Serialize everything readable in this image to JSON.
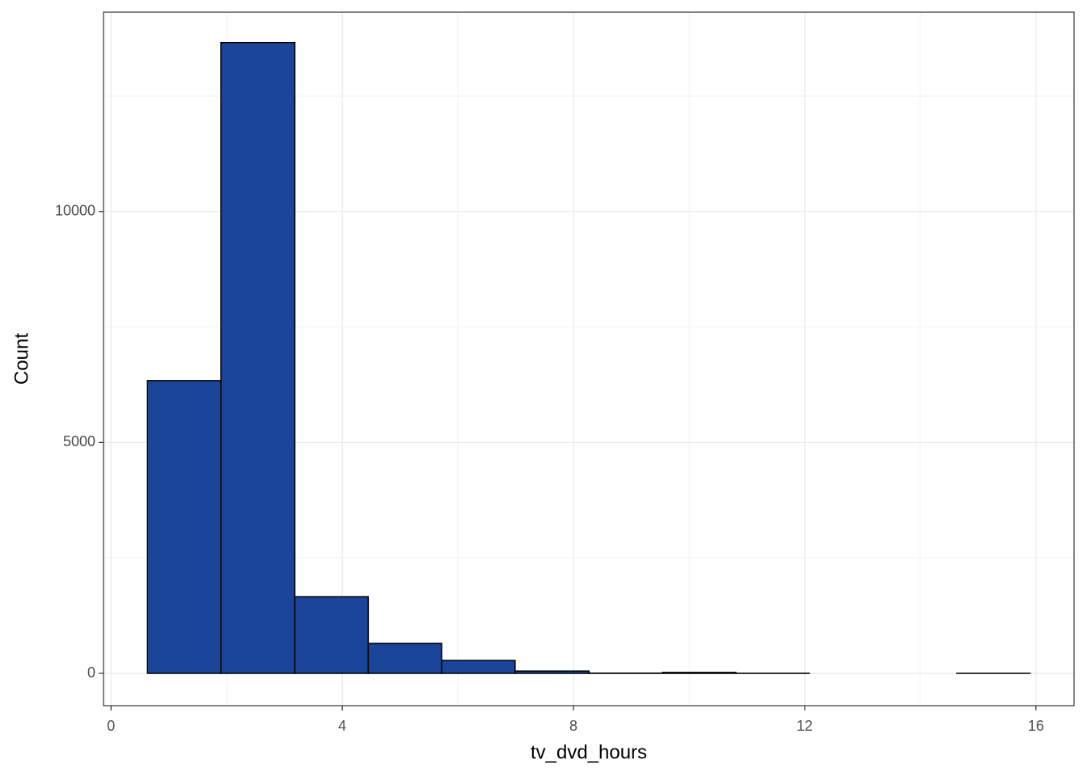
{
  "chart_data": {
    "type": "histogram",
    "x_label": "tv_dvd_hours",
    "y_label": "Count",
    "bins": [
      0.63,
      1.9,
      3.18,
      4.45,
      5.72,
      6.99,
      8.27,
      9.54,
      10.81,
      12.08,
      13.36,
      14.63,
      15.9
    ],
    "values": [
      6340,
      13660,
      1660,
      650,
      280,
      50,
      5,
      20,
      2,
      0,
      0,
      1
    ],
    "color": "#1a4599",
    "edge_color": "#000000",
    "xlim": [
      -0.13,
      16.66
    ],
    "ylim": [
      -700,
      14320
    ],
    "xticks": [
      0,
      4,
      8,
      12,
      16
    ],
    "yticks": [
      0,
      5000,
      10000
    ],
    "x_minor_grid": [
      2,
      6,
      10,
      14
    ],
    "y_minor_grid": [
      2500,
      7500,
      12500
    ],
    "grid": true
  }
}
